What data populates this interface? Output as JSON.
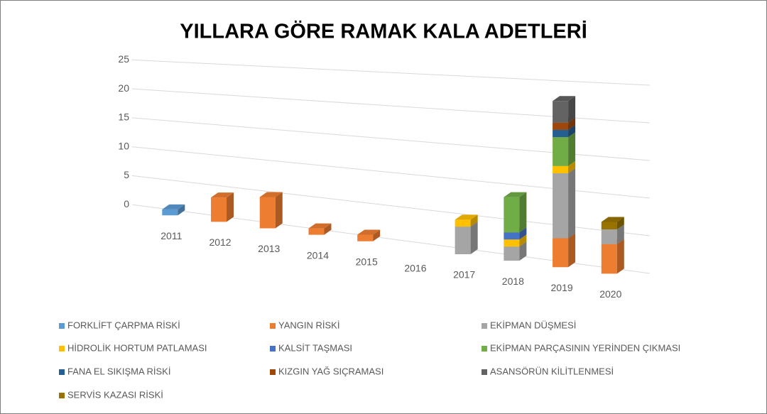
{
  "chart_data": {
    "type": "bar3d_stacked",
    "title": "YILLARA GÖRE RAMAK KALA ADETLERİ",
    "categories": [
      "2011",
      "2012",
      "2013",
      "2014",
      "2015",
      "2016",
      "2017",
      "2018",
      "2019",
      "2020"
    ],
    "ylim": [
      0,
      25
    ],
    "yticks": [
      0,
      5,
      10,
      15,
      20,
      25
    ],
    "grid": true,
    "legend": "bottom",
    "series": [
      {
        "name": "FORKLİFT ÇARPMA RİSKİ",
        "color": "#5b9bd5",
        "values": [
          1,
          0,
          0,
          0,
          0,
          0,
          0,
          0,
          0,
          0
        ]
      },
      {
        "name": "YANGIN RİSKİ",
        "color": "#ed7d31",
        "values": [
          0,
          4,
          5,
          1,
          1,
          0,
          0,
          0,
          4,
          4
        ]
      },
      {
        "name": "EKİPMAN DÜŞMESİ",
        "color": "#a5a5a5",
        "values": [
          0,
          0,
          0,
          0,
          0,
          0,
          4,
          2,
          9,
          2
        ]
      },
      {
        "name": "HİDROLİK HORTUM PATLAMASI",
        "color": "#ffc000",
        "values": [
          0,
          0,
          0,
          0,
          0,
          0,
          1,
          1,
          1,
          0
        ]
      },
      {
        "name": "KALSİT TAŞMASI",
        "color": "#4472c4",
        "values": [
          0,
          0,
          0,
          0,
          0,
          0,
          0,
          1,
          0,
          0
        ]
      },
      {
        "name": "EKİPMAN PARÇASININ YERİNDEN ÇIKMASI",
        "color": "#70ad47",
        "values": [
          0,
          0,
          0,
          0,
          0,
          0,
          0,
          5,
          4,
          0
        ]
      },
      {
        "name": "FANA EL SIKIŞMA RİSKİ",
        "color": "#255e91",
        "values": [
          0,
          0,
          0,
          0,
          0,
          0,
          0,
          0,
          1,
          0
        ]
      },
      {
        "name": "KIZGIN YAĞ SIÇRAMASI",
        "color": "#9e480e",
        "values": [
          0,
          0,
          0,
          0,
          0,
          0,
          0,
          0,
          1,
          0
        ]
      },
      {
        "name": "ASANSÖRÜN KİLİTLENMESİ",
        "color": "#636363",
        "values": [
          0,
          0,
          0,
          0,
          0,
          0,
          0,
          0,
          3,
          0
        ]
      },
      {
        "name": "SERVİS KAZASI RİSKİ",
        "color": "#997300",
        "values": [
          0,
          0,
          0,
          0,
          0,
          0,
          0,
          0,
          0,
          1
        ]
      }
    ]
  }
}
